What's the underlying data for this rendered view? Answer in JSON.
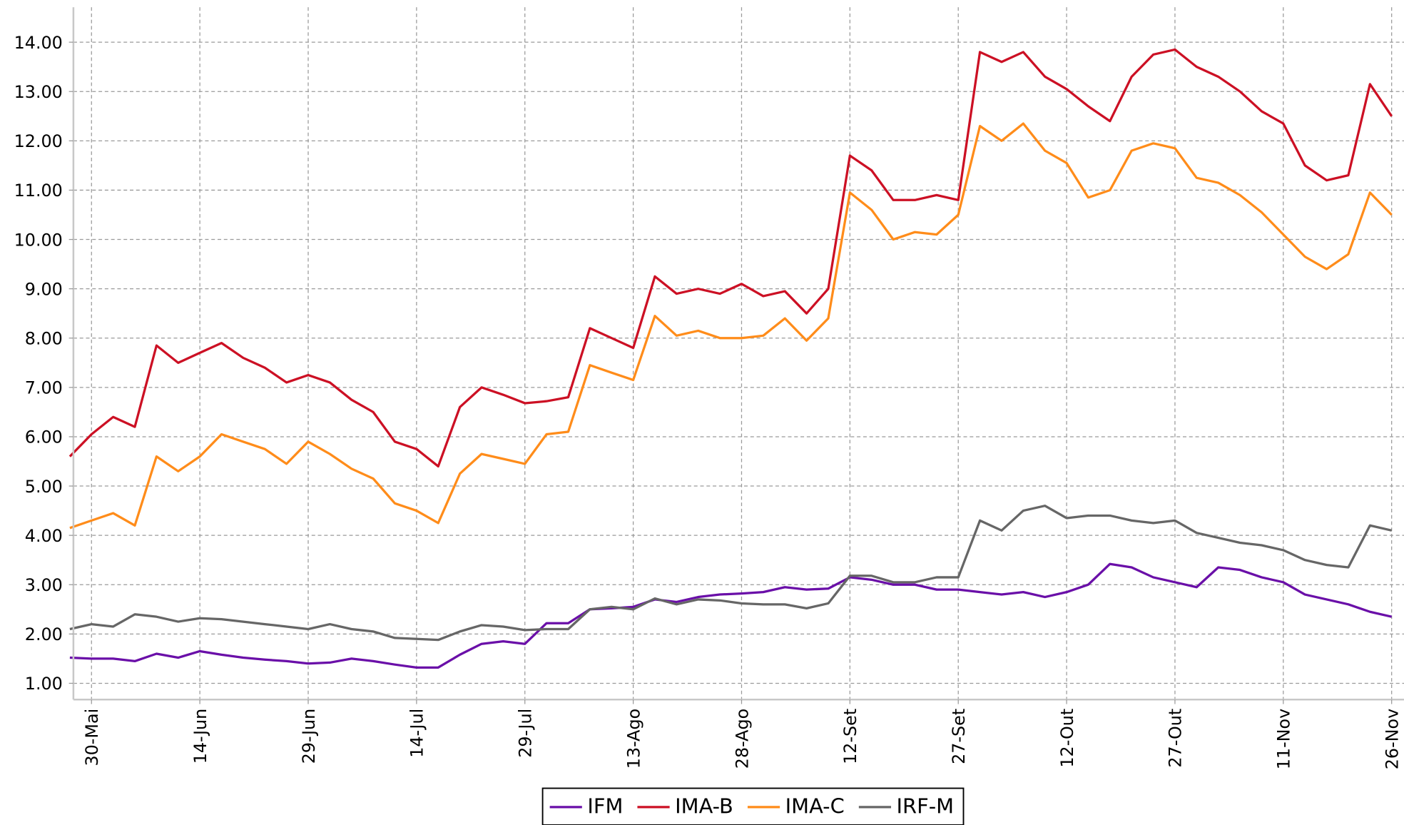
{
  "chart_data": {
    "type": "line",
    "categories": [
      "27-Mai",
      "30-Mai",
      "02-Jun",
      "05-Jun",
      "08-Jun",
      "11-Jun",
      "14-Jun",
      "17-Jun",
      "20-Jun",
      "23-Jun",
      "26-Jun",
      "29-Jun",
      "02-Jul",
      "05-Jul",
      "08-Jul",
      "11-Jul",
      "14-Jul",
      "17-Jul",
      "20-Jul",
      "23-Jul",
      "26-Jul",
      "29-Jul",
      "01-Ago",
      "04-Ago",
      "07-Ago",
      "10-Ago",
      "13-Ago",
      "16-Ago",
      "19-Ago",
      "22-Ago",
      "25-Ago",
      "28-Ago",
      "31-Ago",
      "03-Set",
      "06-Set",
      "09-Set",
      "12-Set",
      "15-Set",
      "18-Set",
      "21-Set",
      "24-Set",
      "27-Set",
      "30-Set",
      "03-Out",
      "06-Out",
      "09-Out",
      "12-Out",
      "15-Out",
      "18-Out",
      "21-Out",
      "24-Out",
      "27-Out",
      "30-Out",
      "02-Nov",
      "05-Nov",
      "08-Nov",
      "11-Nov",
      "14-Nov",
      "17-Nov",
      "20-Nov",
      "23-Nov",
      "26-Nov"
    ],
    "xticks": [
      "30-Mai",
      "14-Jun",
      "29-Jun",
      "14-Jul",
      "29-Jul",
      "13-Ago",
      "28-Ago",
      "12-Set",
      "27-Set",
      "12-Out",
      "27-Out",
      "11-Nov",
      "26-Nov"
    ],
    "series": [
      {
        "name": "IFM",
        "color": "#6a0fa8",
        "values": [
          1.52,
          1.5,
          1.5,
          1.45,
          1.6,
          1.52,
          1.65,
          1.58,
          1.52,
          1.48,
          1.45,
          1.4,
          1.42,
          1.5,
          1.45,
          1.38,
          1.32,
          1.32,
          1.58,
          1.8,
          1.85,
          1.8,
          2.22,
          2.22,
          2.5,
          2.52,
          2.55,
          2.7,
          2.65,
          2.75,
          2.8,
          2.82,
          2.85,
          2.95,
          2.9,
          2.92,
          3.15,
          3.1,
          3.0,
          3.0,
          2.9,
          2.9,
          2.85,
          2.8,
          2.85,
          2.75,
          2.85,
          3.0,
          3.42,
          3.35,
          3.15,
          3.05,
          2.95,
          3.35,
          3.3,
          3.15,
          3.05,
          2.8,
          2.7,
          2.6,
          2.45,
          2.35
        ]
      },
      {
        "name": "IMA-B",
        "color": "#cc1024",
        "values": [
          5.6,
          6.05,
          6.4,
          6.2,
          7.85,
          7.5,
          7.7,
          7.9,
          7.6,
          7.4,
          7.1,
          7.25,
          7.1,
          6.75,
          6.5,
          5.9,
          5.75,
          5.4,
          6.6,
          7.0,
          6.85,
          6.68,
          6.72,
          6.8,
          8.2,
          8.0,
          7.8,
          9.25,
          8.9,
          9.0,
          8.9,
          9.1,
          8.85,
          8.95,
          8.5,
          9.0,
          11.7,
          11.4,
          10.8,
          10.8,
          10.9,
          10.8,
          13.8,
          13.6,
          13.8,
          13.3,
          13.05,
          12.7,
          12.4,
          13.3,
          13.75,
          13.85,
          13.5,
          13.3,
          13.0,
          12.6,
          12.35,
          11.5,
          11.2,
          11.3,
          13.15,
          12.5
        ]
      },
      {
        "name": "IMA-C",
        "color": "#ff8c1a",
        "values": [
          4.15,
          4.3,
          4.45,
          4.2,
          5.6,
          5.3,
          5.6,
          6.05,
          5.9,
          5.75,
          5.45,
          5.9,
          5.65,
          5.35,
          5.15,
          4.65,
          4.5,
          4.25,
          5.25,
          5.65,
          5.55,
          5.45,
          6.05,
          6.1,
          7.45,
          7.3,
          7.15,
          8.45,
          8.05,
          8.15,
          8.0,
          8.0,
          8.05,
          8.4,
          7.95,
          8.4,
          10.95,
          10.6,
          10.0,
          10.15,
          10.1,
          10.5,
          12.3,
          12.0,
          12.35,
          11.8,
          11.55,
          10.85,
          11.0,
          11.8,
          11.95,
          11.85,
          11.25,
          11.15,
          10.9,
          10.55,
          10.1,
          9.65,
          9.4,
          9.7,
          10.95,
          10.5
        ]
      },
      {
        "name": "IRF-M",
        "color": "#666666",
        "values": [
          2.1,
          2.2,
          2.15,
          2.4,
          2.35,
          2.25,
          2.32,
          2.3,
          2.25,
          2.2,
          2.15,
          2.1,
          2.2,
          2.1,
          2.05,
          1.92,
          1.9,
          1.88,
          2.05,
          2.18,
          2.15,
          2.08,
          2.1,
          2.1,
          2.5,
          2.55,
          2.5,
          2.72,
          2.6,
          2.7,
          2.68,
          2.62,
          2.6,
          2.6,
          2.52,
          2.62,
          3.18,
          3.18,
          3.05,
          3.05,
          3.15,
          3.15,
          4.3,
          4.1,
          4.5,
          4.6,
          4.35,
          4.4,
          4.4,
          4.3,
          4.25,
          4.3,
          4.05,
          3.95,
          3.85,
          3.8,
          3.7,
          3.5,
          3.4,
          3.35,
          4.2,
          4.1
        ]
      }
    ],
    "ylim": [
      0.67,
      14.71
    ],
    "yticks": [
      {
        "value": 1,
        "label": "1.00"
      },
      {
        "value": 2,
        "label": "2.00"
      },
      {
        "value": 3,
        "label": "3.00"
      },
      {
        "value": 4,
        "label": "4.00"
      },
      {
        "value": 5,
        "label": "5.00"
      },
      {
        "value": 6,
        "label": "6.00"
      },
      {
        "value": 7,
        "label": "7.00"
      },
      {
        "value": 8,
        "label": "8.00"
      },
      {
        "value": 9,
        "label": "9.00"
      },
      {
        "value": 10,
        "label": "10.00"
      },
      {
        "value": 11,
        "label": "11.00"
      },
      {
        "value": 12,
        "label": "12.00"
      },
      {
        "value": 13,
        "label": "13.00"
      },
      {
        "value": 14,
        "label": "14.00"
      }
    ],
    "grid": true,
    "legend": "bottom"
  }
}
